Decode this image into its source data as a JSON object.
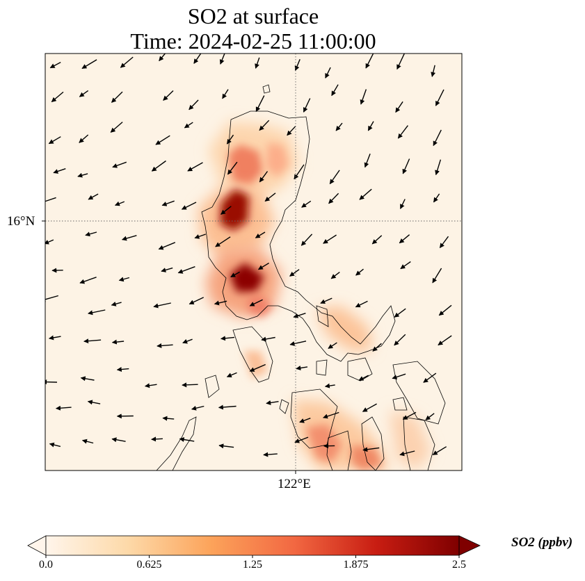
{
  "title_line1": "SO2 at surface",
  "title_line2": "Time: 2024-02-25 11:00:00",
  "map": {
    "lat_tick_label": "16°N",
    "lon_tick_label": "122°E",
    "background_color": "#fdf3e5",
    "coastline_color": "#000000",
    "gridline_style": "dotted",
    "wind_arrow_color": "#000000",
    "plumes": [
      {
        "name": "plume-north-luzon",
        "level": 1.6
      },
      {
        "name": "plume-ilocos",
        "level": 2.5
      },
      {
        "name": "plume-central-luzon",
        "level": 2.5
      },
      {
        "name": "plume-bicol",
        "level": 1.1
      },
      {
        "name": "plume-visayas",
        "level": 1.4
      }
    ]
  },
  "colorbar": {
    "title": "SO2 (ppbv)",
    "min": 0.0,
    "max": 2.5,
    "ticks": [
      "0.0",
      "0.625",
      "1.25",
      "1.875",
      "2.5"
    ],
    "colormap_stops": [
      "#fff5eb",
      "#fdd9a8",
      "#fca35a",
      "#f26842",
      "#c81d12",
      "#7f0000"
    ]
  }
}
